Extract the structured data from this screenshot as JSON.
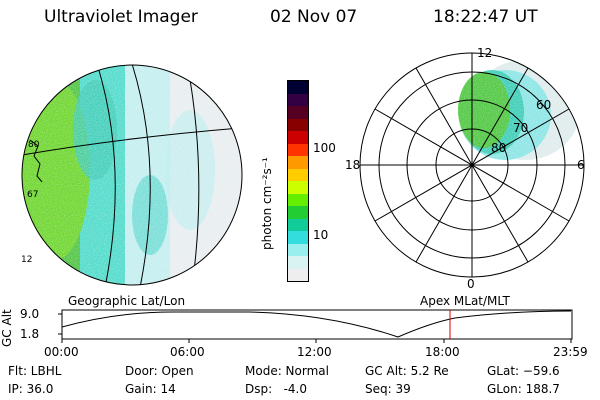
{
  "header": {
    "title": "Ultraviolet Imager",
    "date": "02 Nov 07",
    "time": "18:22:47 UT"
  },
  "geo_map": {
    "label": "Geographic Lat/Lon",
    "edge_labels": [
      "80",
      "67",
      "12"
    ]
  },
  "colorbar": {
    "unit_label": "photon cm⁻²s⁻¹",
    "ticks": [
      "100",
      "10"
    ],
    "colors": [
      "#000033",
      "#330044",
      "#550022",
      "#880000",
      "#cc0000",
      "#ff3300",
      "#ff9900",
      "#ffcc00",
      "#ccff00",
      "#66ee00",
      "#22cc33",
      "#11cc99",
      "#33dddd",
      "#99eeee",
      "#d9f2f2",
      "#eeeeee"
    ]
  },
  "polar": {
    "label": "Apex MLat/MLT",
    "mlt_labels": {
      "top": "12",
      "left": "18",
      "right": "6",
      "bottom": "0"
    },
    "lat_labels": [
      "60",
      "70",
      "80"
    ]
  },
  "timeline": {
    "y_axis_label": "GC Alt",
    "y_ticks": [
      "9.0",
      "1.8"
    ],
    "x_ticks": [
      "00:00",
      "06:00",
      "12:00",
      "18:00",
      "23:59"
    ],
    "marker_color": "#dd0000"
  },
  "status": {
    "flt": "Flt: LBHL",
    "ip": "IP: 36.0",
    "door": "Door: Open",
    "gain": "Gain: 14",
    "mode": "Mode: Normal",
    "dsp": "Dsp:   -4.0",
    "gc_alt": "GC Alt: 5.2 Re",
    "seq": "Seq: 39",
    "glat": "GLat: −59.6",
    "glon": "GLon: 188.7"
  }
}
